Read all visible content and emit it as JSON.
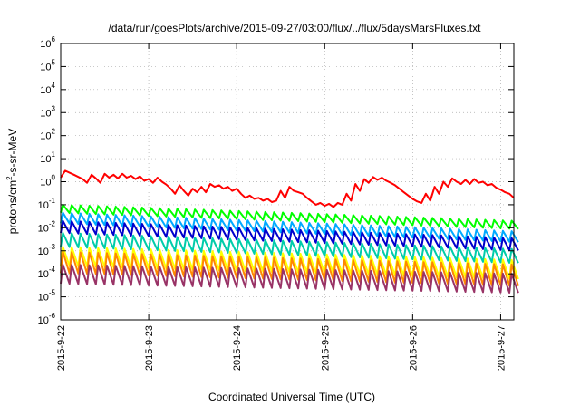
{
  "chart_data": {
    "type": "line",
    "title": "/data/run/goesPlots/archive/2015-09-27/03:00/flux/../flux/5daysMarsFluxes.txt",
    "xlabel": "Coordinated Universal Time (UTC)",
    "ylabel_main": "protons/cm",
    "ylabel_sup": "2",
    "ylabel_tail": "-s-sr-MeV",
    "yscale": "log",
    "ylim_exp": [
      -6,
      6
    ],
    "xlim_days": [
      0,
      5.15
    ],
    "x_ticks": [
      {
        "label": "2015-9-22",
        "day": 0
      },
      {
        "label": "2015-9-23",
        "day": 1
      },
      {
        "label": "2015-9-24",
        "day": 2
      },
      {
        "label": "2015-9-25",
        "day": 3
      },
      {
        "label": "2015-9-26",
        "day": 4
      },
      {
        "label": "2015-9-27",
        "day": 5
      }
    ],
    "y_tick_base": "10",
    "y_ticks": [
      "-6",
      "-5",
      "-4",
      "-3",
      "-2",
      "-1",
      "0",
      "1",
      "2",
      "3",
      "4",
      "5",
      "6"
    ],
    "grid": true,
    "series": [
      {
        "color": "#ff0000",
        "x": [
          0,
          0.05,
          0.15,
          0.25,
          0.3,
          0.35,
          0.4,
          0.45,
          0.5,
          0.55,
          0.6,
          0.65,
          0.7,
          0.75,
          0.8,
          0.85,
          0.9,
          0.95,
          1.0,
          1.05,
          1.1,
          1.15,
          1.2,
          1.25,
          1.3,
          1.35,
          1.4,
          1.45,
          1.5,
          1.55,
          1.6,
          1.65,
          1.7,
          1.75,
          1.8,
          1.85,
          1.9,
          1.95,
          2.0,
          2.05,
          2.1,
          2.15,
          2.2,
          2.25,
          2.3,
          2.35,
          2.4,
          2.45,
          2.5,
          2.55,
          2.6,
          2.65,
          2.7,
          2.75,
          2.8,
          2.85,
          2.9,
          2.95,
          3.0,
          3.05,
          3.1,
          3.15,
          3.2,
          3.25,
          3.3,
          3.35,
          3.4,
          3.45,
          3.5,
          3.55,
          3.6,
          3.65,
          3.7,
          3.75,
          3.8,
          3.85,
          3.9,
          3.95,
          4.0,
          4.05,
          4.1,
          4.15,
          4.2,
          4.25,
          4.3,
          4.35,
          4.4,
          4.45,
          4.5,
          4.55,
          4.6,
          4.65,
          4.7,
          4.75,
          4.8,
          4.85,
          4.9,
          4.95,
          5.0,
          5.05,
          5.1,
          5.15
        ],
        "y": [
          1.5,
          3.0,
          2.0,
          1.3,
          0.9,
          2.0,
          1.4,
          0.9,
          2.2,
          1.5,
          2.0,
          1.4,
          2.2,
          1.5,
          1.8,
          1.3,
          1.7,
          1.1,
          1.3,
          0.9,
          1.5,
          1.0,
          0.75,
          0.5,
          0.3,
          0.7,
          0.4,
          0.25,
          0.5,
          0.35,
          0.6,
          0.35,
          0.8,
          0.6,
          0.7,
          0.5,
          0.6,
          0.4,
          0.5,
          0.3,
          0.2,
          0.25,
          0.18,
          0.2,
          0.15,
          0.18,
          0.13,
          0.15,
          0.4,
          0.2,
          0.6,
          0.4,
          0.35,
          0.3,
          0.2,
          0.14,
          0.1,
          0.12,
          0.09,
          0.11,
          0.08,
          0.12,
          0.1,
          0.3,
          0.15,
          0.8,
          0.4,
          1.3,
          0.9,
          1.6,
          1.2,
          1.5,
          1.1,
          0.9,
          0.7,
          0.5,
          0.35,
          0.25,
          0.18,
          0.14,
          0.12,
          0.3,
          0.15,
          0.6,
          0.3,
          1.0,
          0.6,
          1.4,
          1.0,
          0.8,
          1.2,
          0.8,
          1.3,
          0.9,
          1.0,
          0.7,
          0.8,
          0.55,
          0.45,
          0.35,
          0.3,
          0.2
        ]
      },
      {
        "color": "#00ff00",
        "sawtooth": {
          "peak_start": 0.1,
          "peak_end": 0.02,
          "trough_ratio": 0.45,
          "period": 0.1
        }
      },
      {
        "color": "#00aaff",
        "sawtooth": {
          "peak_start": 0.045,
          "peak_end": 0.007,
          "trough_ratio": 0.35,
          "period": 0.1
        }
      },
      {
        "color": "#0000cc",
        "sawtooth": {
          "peak_start": 0.02,
          "peak_end": 0.0035,
          "trough_ratio": 0.3,
          "period": 0.1
        }
      },
      {
        "color": "#00ccaa",
        "sawtooth": {
          "peak_start": 0.006,
          "peak_end": 0.0012,
          "trough_ratio": 0.25,
          "period": 0.1
        }
      },
      {
        "color": "#ffff00",
        "sawtooth": {
          "peak_start": 0.0015,
          "peak_end": 0.0004,
          "trough_ratio": 0.15,
          "period": 0.1
        }
      },
      {
        "color": "#ff8800",
        "sawtooth": {
          "peak_start": 0.0009,
          "peak_end": 0.00025,
          "trough_ratio": 0.12,
          "period": 0.1
        }
      },
      {
        "color": "#993366",
        "sawtooth": {
          "peak_start": 0.00025,
          "peak_end": 0.0001,
          "trough_ratio": 0.15,
          "period": 0.1
        }
      }
    ]
  }
}
